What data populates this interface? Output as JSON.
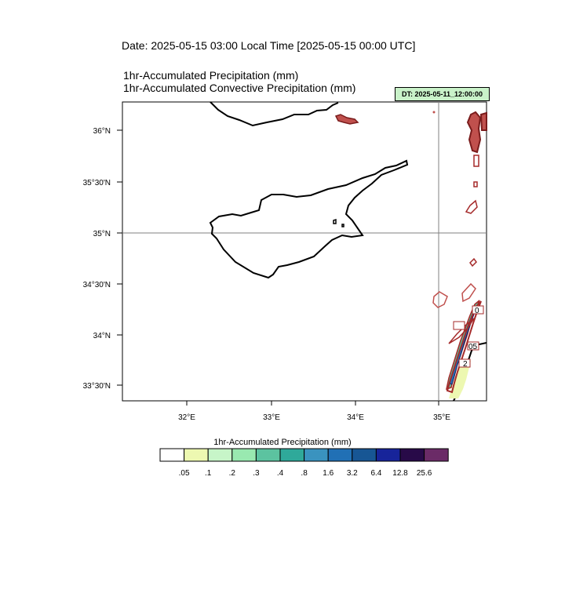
{
  "header": {
    "date_line": "Date: 2025-05-15  03:00 Local Time [2025-05-15  00:00 UTC]",
    "field_line_1": "1hr-Accumulated Precipitation   (mm)",
    "field_line_2": "1hr-Accumulated Convective Precipitation   (mm)",
    "dt_badge": "DT: 2025-05-11_12:00:00"
  },
  "map": {
    "lat_labels": [
      "36°N",
      "35°30'N",
      "35°N",
      "34°30'N",
      "34°N",
      "33°30'N"
    ],
    "lon_labels": [
      "32°E",
      "33°E",
      "34°E",
      "35°E"
    ],
    "contour_labels": [
      "0",
      "05",
      "2"
    ],
    "colors": {
      "coast": "#000000",
      "contour": "#a52a2a",
      "contour_fill": "#c0504d",
      "grid": "#808080"
    }
  },
  "colorbar": {
    "title": "1hr-Accumulated Precipitation  (mm)",
    "ticks": [
      ".05",
      ".1",
      ".2",
      ".3",
      ".4",
      ".8",
      "1.6",
      "3.2",
      "6.4",
      "12.8",
      "25.6"
    ],
    "colors": [
      "#ffffff",
      "#edf8b1",
      "#c7f5c8",
      "#99e9b0",
      "#5cc3a0",
      "#2fa99a",
      "#3a93bf",
      "#2170b5",
      "#175694",
      "#17249a",
      "#280a48",
      "#6b2b67"
    ]
  }
}
